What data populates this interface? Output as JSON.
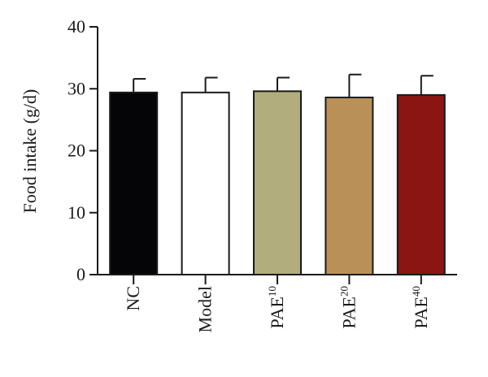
{
  "chart_data": {
    "type": "bar",
    "title": "",
    "xlabel": "",
    "ylabel": "Food intake (g/d)",
    "ylim": [
      0,
      40
    ],
    "yticks": [
      0,
      10,
      20,
      30,
      40
    ],
    "grid": false,
    "categories": [
      {
        "base": "NC",
        "sup": ""
      },
      {
        "base": "Model",
        "sup": ""
      },
      {
        "base": "PAE",
        "sup": "10"
      },
      {
        "base": "PAE",
        "sup": "20"
      },
      {
        "base": "PAE",
        "sup": "40"
      }
    ],
    "values": [
      29.4,
      29.4,
      29.6,
      28.6,
      29.0
    ],
    "errors": [
      2.2,
      2.4,
      2.2,
      3.7,
      3.1
    ],
    "colors": [
      "#050508",
      "#ffffff",
      "#b1ad7c",
      "#b99158",
      "#8a1512"
    ]
  }
}
